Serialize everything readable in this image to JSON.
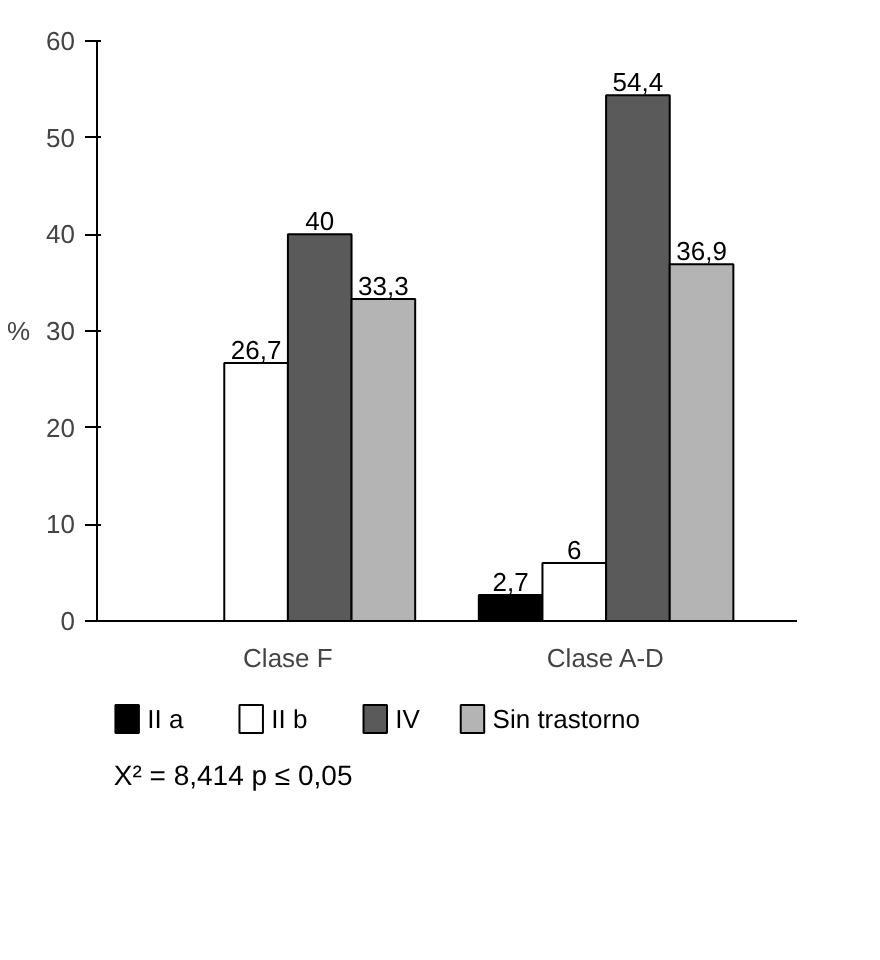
{
  "chart_data": {
    "type": "bar",
    "ylabel": "%",
    "categories": [
      "Clase F",
      "Clase A-D"
    ],
    "series": [
      {
        "name": "II a",
        "color": "#000000",
        "values": [
          null,
          2.7
        ],
        "value_labels": [
          null,
          "2,7"
        ]
      },
      {
        "name": "II b",
        "color": "#ffffff",
        "values": [
          26.7,
          6
        ],
        "value_labels": [
          "26,7",
          "6"
        ]
      },
      {
        "name": "IV",
        "color": "#5a5a5a",
        "values": [
          40,
          54.4
        ],
        "value_labels": [
          "40",
          "54,4"
        ]
      },
      {
        "name": "Sin trastorno",
        "color": "#b4b4b4",
        "values": [
          33.3,
          36.9
        ],
        "value_labels": [
          "33,3",
          "36,9"
        ]
      }
    ],
    "ylim": [
      0,
      60
    ],
    "yticks": [
      0,
      10,
      20,
      30,
      40,
      50,
      60
    ],
    "grid": false,
    "legend": "bottom",
    "annotations": [
      "X² = 8,414    p ≤ 0,05"
    ]
  }
}
